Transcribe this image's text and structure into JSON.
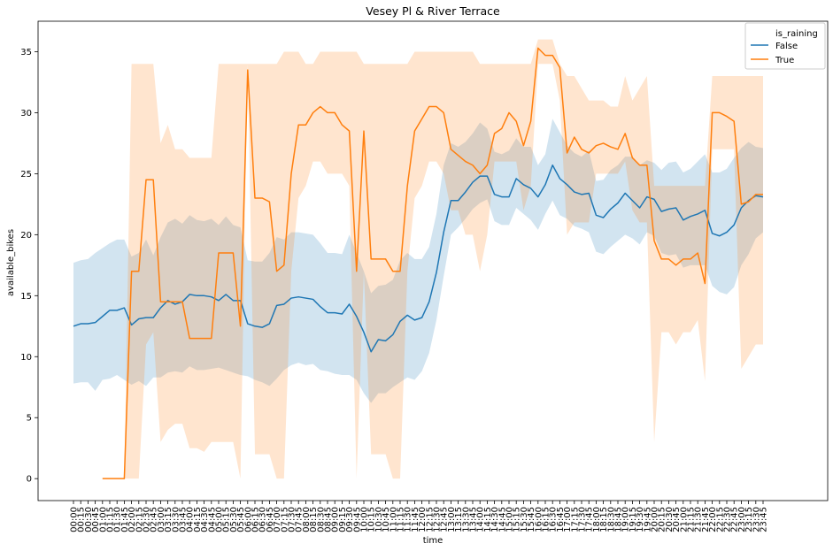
{
  "chart_data": {
    "type": "line",
    "title": "Vesey Pl & River Terrace",
    "xlabel": "time",
    "ylabel": "available_bikes",
    "ylim": [
      -1.8,
      37.5
    ],
    "yticks": [
      0,
      5,
      10,
      15,
      20,
      25,
      30,
      35
    ],
    "grid": false,
    "legend": {
      "title": "is_raining",
      "placement": "top-right"
    },
    "x": [
      "00:00",
      "00:15",
      "00:30",
      "00:45",
      "01:00",
      "01:15",
      "01:30",
      "01:45",
      "02:00",
      "02:15",
      "02:30",
      "02:45",
      "03:00",
      "03:15",
      "03:30",
      "03:45",
      "04:00",
      "04:15",
      "04:30",
      "04:45",
      "05:00",
      "05:15",
      "05:30",
      "05:45",
      "06:00",
      "06:15",
      "06:30",
      "06:45",
      "07:00",
      "07:15",
      "07:30",
      "07:45",
      "08:00",
      "08:15",
      "08:30",
      "08:45",
      "09:00",
      "09:15",
      "09:30",
      "09:45",
      "10:00",
      "10:15",
      "10:30",
      "10:45",
      "11:00",
      "11:15",
      "11:30",
      "11:45",
      "12:00",
      "12:15",
      "12:30",
      "12:45",
      "13:00",
      "13:15",
      "13:30",
      "13:45",
      "14:00",
      "14:15",
      "14:30",
      "14:45",
      "15:00",
      "15:15",
      "15:30",
      "15:45",
      "16:00",
      "16:15",
      "16:30",
      "16:45",
      "17:00",
      "17:15",
      "17:30",
      "17:45",
      "18:00",
      "18:15",
      "18:30",
      "18:45",
      "19:00",
      "19:15",
      "19:30",
      "19:45",
      "20:00",
      "20:15",
      "20:30",
      "20:45",
      "21:00",
      "21:15",
      "21:30",
      "21:45",
      "22:00",
      "22:15",
      "22:30",
      "22:45",
      "23:00",
      "23:15",
      "23:30",
      "23:45"
    ],
    "series": [
      {
        "name": "False",
        "color": "#1f77b4",
        "values": [
          12.5,
          12.7,
          12.7,
          12.8,
          13.3,
          13.8,
          13.8,
          14.0,
          12.6,
          13.1,
          13.2,
          13.2,
          14.0,
          14.6,
          14.3,
          14.5,
          15.1,
          15.0,
          15.0,
          14.9,
          14.6,
          15.1,
          14.6,
          14.6,
          12.7,
          12.5,
          12.4,
          12.7,
          14.2,
          14.3,
          14.8,
          14.9,
          14.8,
          14.7,
          14.1,
          13.6,
          13.6,
          13.5,
          14.3,
          13.3,
          12.0,
          10.4,
          11.4,
          11.3,
          11.8,
          12.9,
          13.4,
          13.0,
          13.2,
          14.5,
          16.9,
          20.2,
          22.8,
          22.8,
          23.5,
          24.3,
          24.8,
          24.8,
          23.3,
          23.1,
          23.1,
          24.6,
          24.1,
          23.8,
          23.1,
          24.1,
          25.7,
          24.6,
          24.1,
          23.5,
          23.3,
          23.4,
          21.6,
          21.4,
          22.1,
          22.6,
          23.4,
          22.8,
          22.2,
          23.1,
          22.9,
          21.9,
          22.1,
          22.2,
          21.2,
          21.5,
          21.7,
          22.0,
          20.1,
          19.9,
          20.2,
          20.8,
          22.2,
          22.8,
          23.2,
          23.1
        ],
        "ci_lower": [
          7.8,
          7.9,
          7.9,
          7.2,
          8.1,
          8.2,
          8.5,
          8.1,
          7.7,
          8.0,
          7.6,
          8.3,
          8.3,
          8.7,
          8.8,
          8.7,
          9.2,
          8.9,
          8.9,
          9.0,
          9.1,
          8.9,
          8.7,
          8.5,
          8.4,
          8.1,
          7.9,
          7.6,
          8.2,
          8.9,
          9.3,
          9.5,
          9.3,
          9.4,
          8.9,
          8.8,
          8.6,
          8.5,
          8.5,
          8.1,
          7.0,
          6.2,
          7.0,
          7.0,
          7.5,
          7.9,
          8.3,
          8.1,
          8.8,
          10.3,
          13.0,
          16.6,
          20.0,
          20.6,
          21.3,
          22.1,
          22.6,
          22.9,
          21.1,
          20.8,
          20.8,
          22.2,
          21.7,
          21.2,
          20.4,
          21.7,
          22.8,
          21.6,
          21.3,
          20.7,
          20.5,
          20.2,
          18.6,
          18.4,
          19.0,
          19.5,
          20.0,
          19.7,
          19.2,
          20.2,
          19.9,
          18.5,
          18.3,
          18.4,
          17.3,
          17.5,
          17.5,
          17.5,
          15.8,
          15.3,
          15.1,
          15.7,
          17.5,
          18.4,
          19.7,
          20.2
        ],
        "ci_upper": [
          17.7,
          17.9,
          18.0,
          18.5,
          18.9,
          19.3,
          19.6,
          19.6,
          18.2,
          18.5,
          19.6,
          18.3,
          19.8,
          21.0,
          21.3,
          20.9,
          21.6,
          21.2,
          21.1,
          21.3,
          20.8,
          21.5,
          20.8,
          20.6,
          17.9,
          17.8,
          17.8,
          18.5,
          19.8,
          19.6,
          20.2,
          20.2,
          20.1,
          20.0,
          19.3,
          18.5,
          18.5,
          18.4,
          20.0,
          18.5,
          17.0,
          15.2,
          15.8,
          15.9,
          16.3,
          17.9,
          18.5,
          18.0,
          18.0,
          19.0,
          21.7,
          25.7,
          27.5,
          27.2,
          27.6,
          28.3,
          29.2,
          28.7,
          26.8,
          26.6,
          26.9,
          27.9,
          27.2,
          27.2,
          25.7,
          26.6,
          29.5,
          28.4,
          27.3,
          26.7,
          26.4,
          26.9,
          24.4,
          24.5,
          25.3,
          25.7,
          26.4,
          26.4,
          25.7,
          26.1,
          25.9,
          25.3,
          25.9,
          26.0,
          25.1,
          25.4,
          26.0,
          26.6,
          25.1,
          25.1,
          25.4,
          26.3,
          27.1,
          27.6,
          27.2,
          27.1
        ]
      },
      {
        "name": "True",
        "color": "#ff7f0e",
        "values": [
          null,
          null,
          null,
          null,
          0.0,
          0.0,
          0.0,
          0.0,
          17.0,
          17.0,
          24.5,
          24.5,
          14.5,
          14.5,
          14.5,
          14.5,
          11.5,
          11.5,
          11.5,
          11.5,
          18.5,
          18.5,
          18.5,
          12.5,
          33.5,
          23.0,
          23.0,
          22.7,
          17.0,
          17.5,
          25.0,
          29.0,
          29.0,
          30.0,
          30.5,
          30.0,
          30.0,
          29.0,
          28.5,
          17.0,
          28.5,
          18.0,
          18.0,
          18.0,
          17.0,
          17.0,
          24.0,
          28.5,
          29.5,
          30.5,
          30.5,
          30.0,
          27.0,
          26.5,
          26.0,
          25.7,
          25.0,
          25.7,
          28.3,
          28.7,
          30.0,
          29.3,
          27.3,
          29.3,
          35.3,
          34.7,
          34.7,
          33.7,
          26.7,
          28.0,
          27.0,
          26.7,
          27.3,
          27.5,
          27.2,
          27.0,
          28.3,
          26.3,
          25.7,
          25.7,
          19.5,
          18.0,
          18.0,
          17.5,
          18.0,
          18.0,
          18.5,
          16.0,
          30.0,
          30.0,
          29.7,
          29.3,
          22.5,
          22.7,
          23.3,
          23.3
        ],
        "ci_lower": [
          null,
          null,
          null,
          null,
          0,
          0,
          0,
          0,
          0,
          0,
          11,
          12,
          3,
          4,
          4.5,
          4.5,
          2.5,
          2.5,
          2.2,
          3,
          3,
          3,
          3,
          0,
          34,
          2,
          2,
          2,
          0,
          0,
          17,
          23,
          24,
          26,
          26,
          25,
          25,
          25,
          24,
          0,
          17,
          2,
          2,
          2,
          0,
          0,
          17,
          23,
          24,
          26,
          26,
          25,
          22,
          22,
          20,
          20,
          17,
          20,
          26,
          26,
          26,
          26,
          22,
          24,
          34,
          34,
          34,
          31,
          20,
          21,
          21,
          21,
          25,
          25,
          25,
          25,
          26,
          22,
          21,
          21,
          3,
          12,
          12,
          11,
          12,
          12,
          13,
          8,
          27,
          27,
          27,
          27,
          9,
          10,
          11,
          11
        ],
        "ci_upper": [
          null,
          null,
          null,
          null,
          0,
          0,
          0,
          0,
          34,
          34,
          34,
          34,
          27.5,
          29,
          27,
          27,
          26.3,
          26.3,
          26.3,
          26.3,
          34,
          34,
          34,
          34,
          34,
          34,
          34,
          34,
          34,
          35,
          35,
          35,
          34,
          34,
          35,
          35,
          35,
          35,
          35,
          35,
          34,
          34,
          34,
          34,
          34,
          34,
          34,
          35,
          35,
          35,
          35,
          35,
          35,
          35,
          35,
          35,
          34,
          34,
          34,
          34,
          34,
          34,
          34,
          34,
          36,
          36,
          36,
          34,
          33,
          33,
          32,
          31,
          31,
          31,
          30.5,
          30.5,
          33,
          31,
          32,
          33,
          24,
          24,
          24,
          24,
          24,
          24,
          24,
          24,
          33,
          33,
          33,
          33,
          33,
          33,
          33,
          33
        ]
      }
    ]
  }
}
